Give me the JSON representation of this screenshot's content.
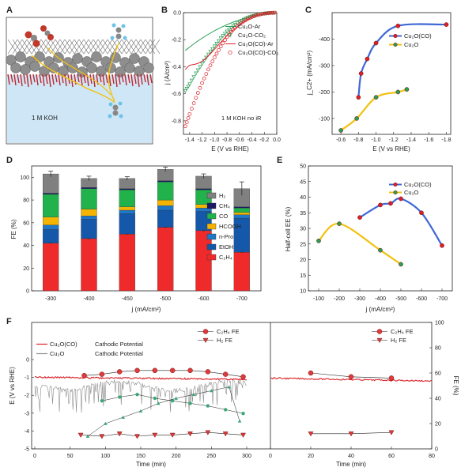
{
  "panels": {
    "A": {
      "label": "A",
      "electrolyte": "1 M KOH"
    },
    "B": {
      "label": "B"
    },
    "C": {
      "label": "C"
    },
    "D": {
      "label": "D"
    },
    "E": {
      "label": "E"
    },
    "F": {
      "label": "F"
    }
  },
  "colors": {
    "cu2oco": "#d92027",
    "cu2o": "#2a9d55",
    "blue": "#3f67d6",
    "yellow": "#f2c10f",
    "H2": "#808080",
    "CH4": "#1a1a66",
    "CO": "#22b24c",
    "HCOOH": "#f4b400",
    "nPro": "#1f77c8",
    "EtOH": "#1557a8",
    "C2H4": "#ee2a2a"
  },
  "chart_data": [
    {
      "id": "B",
      "type": "line",
      "xlabel": "E (V vs RHE)",
      "ylabel": "j (A/cm²)",
      "xlim": [
        -1.5,
        0.0
      ],
      "ylim": [
        -0.9,
        0.0
      ],
      "xticks": [
        "-1.4",
        "-1.2",
        "-1.0",
        "-0.8",
        "-0.6",
        "-0.4",
        "-0.2",
        "0.0"
      ],
      "yticks": [
        "0.0",
        "-0.2",
        "-0.4",
        "-0.6",
        "-0.8"
      ],
      "annotation": "1 M KOH no iR",
      "series": [
        {
          "name": "Cu₂O-Ar",
          "style": "line",
          "color": "#2a9d55",
          "x": [
            -1.47,
            -1.3,
            -1.1,
            -0.9,
            -0.7,
            -0.5,
            -0.35,
            -0.2,
            -0.1,
            -0.05,
            0.0
          ],
          "y": [
            -0.28,
            -0.22,
            -0.16,
            -0.11,
            -0.07,
            -0.04,
            -0.02,
            -0.01,
            -0.005,
            -0.002,
            0.0
          ]
        },
        {
          "name": "Cu₂O-CO₂",
          "style": "triangle",
          "color": "#2a9d55",
          "x": [
            -1.47,
            -1.4,
            -1.3,
            -1.2,
            -1.1,
            -1.0,
            -0.9,
            -0.8,
            -0.7,
            -0.6,
            -0.5,
            -0.4,
            -0.3,
            -0.2,
            -0.1,
            0.0
          ],
          "y": [
            -0.58,
            -0.53,
            -0.45,
            -0.38,
            -0.31,
            -0.25,
            -0.19,
            -0.14,
            -0.1,
            -0.07,
            -0.045,
            -0.028,
            -0.015,
            -0.007,
            -0.003,
            0.0
          ]
        },
        {
          "name": "Cu₂O(CO)-Ar",
          "style": "line",
          "color": "#d92027",
          "x": [
            -1.47,
            -1.4,
            -1.3,
            -1.2,
            -1.1,
            -1.0,
            -0.9,
            -0.8,
            -0.7,
            -0.6,
            -0.5,
            -0.4,
            -0.3,
            -0.2,
            -0.1,
            0.0
          ],
          "y": [
            -0.42,
            -0.39,
            -0.38,
            -0.36,
            -0.32,
            -0.27,
            -0.22,
            -0.17,
            -0.13,
            -0.09,
            -0.06,
            -0.035,
            -0.018,
            -0.008,
            -0.003,
            0.0
          ]
        },
        {
          "name": "Cu₂O(CO)-CO₂",
          "style": "circle",
          "color": "#d92027",
          "x": [
            -1.47,
            -1.4,
            -1.3,
            -1.2,
            -1.1,
            -1.0,
            -0.9,
            -0.8,
            -0.7,
            -0.6,
            -0.5,
            -0.4,
            -0.3,
            -0.2,
            -0.1,
            0.0
          ],
          "y": [
            -0.84,
            -0.75,
            -0.63,
            -0.52,
            -0.42,
            -0.33,
            -0.25,
            -0.18,
            -0.125,
            -0.085,
            -0.055,
            -0.032,
            -0.016,
            -0.007,
            -0.002,
            0.0
          ]
        }
      ]
    },
    {
      "id": "C",
      "type": "line",
      "xlabel": "E (V vs RHE)",
      "ylabel": "j_C2+ (mA/cm²)",
      "xlim": [
        -0.5,
        -1.85
      ],
      "ylim": [
        -40,
        -500
      ],
      "xticks": [
        "-0.6",
        "-0.8",
        "-1.0",
        "-1.2",
        "-1.4",
        "-1.6",
        "-1.8"
      ],
      "yticks": [
        "-100",
        "-200",
        "-300",
        "-400"
      ],
      "series": [
        {
          "name": "Cu₂O(CO)",
          "color": "#d92027",
          "line": "#3f67d6",
          "x": [
            -0.8,
            -0.83,
            -0.9,
            -1.0,
            -1.25,
            -1.8
          ],
          "y": [
            -180,
            -270,
            -325,
            -385,
            -450,
            -455
          ]
        },
        {
          "name": "Cu₂O",
          "color": "#2a9d55",
          "line": "#f2c10f",
          "x": [
            -0.6,
            -0.78,
            -1.0,
            -1.25,
            -1.35
          ],
          "y": [
            -55,
            -100,
            -180,
            -200,
            -210
          ]
        }
      ]
    },
    {
      "id": "D",
      "type": "bar",
      "stacked": true,
      "xlabel": "j (mA/cm²)",
      "ylabel": "FE (%)",
      "ylim": [
        0,
        110
      ],
      "yticks": [
        "0",
        "20",
        "40",
        "60",
        "80",
        "100"
      ],
      "categories": [
        "-300",
        "-400",
        "-450",
        "-500",
        "-600",
        "-700"
      ],
      "legend": [
        "H₂",
        "CH₄",
        "CO",
        "HCOOH",
        "n-Pro",
        "EtOH",
        "C₂H₄"
      ],
      "series": [
        {
          "name": "C₂H₄",
          "color": "#ee2a2a",
          "values": [
            42,
            46,
            50,
            56,
            53,
            34
          ]
        },
        {
          "name": "EtOH",
          "color": "#1557a8",
          "values": [
            12,
            17,
            18,
            15,
            17,
            30
          ]
        },
        {
          "name": "n-Pro",
          "color": "#1f77c8",
          "values": [
            4,
            3,
            3,
            4,
            3,
            3
          ]
        },
        {
          "name": "HCOOH",
          "color": "#f4b400",
          "values": [
            7,
            6,
            3,
            5,
            3,
            2
          ]
        },
        {
          "name": "CO",
          "color": "#22b24c",
          "values": [
            20,
            18,
            15,
            16,
            13,
            4
          ]
        },
        {
          "name": "CH₄",
          "color": "#1a1a66",
          "values": [
            1,
            1,
            1,
            1,
            1,
            1
          ]
        },
        {
          "name": "H₂",
          "color": "#808080",
          "values": [
            17,
            8,
            9,
            10,
            11,
            16
          ]
        }
      ],
      "errors": [
        2.5,
        2,
        1.5,
        2,
        2,
        6
      ]
    },
    {
      "id": "E",
      "type": "line",
      "xlabel": "j (mA/cm²)",
      "ylabel": "Half-cell EE (%)",
      "xlim": [
        -50,
        -750
      ],
      "ylim": [
        10,
        50
      ],
      "xticks": [
        "-100",
        "-200",
        "-300",
        "-400",
        "-500",
        "-600",
        "-700"
      ],
      "yticks": [
        "10",
        "15",
        "20",
        "25",
        "30",
        "35",
        "40",
        "45",
        "50"
      ],
      "series": [
        {
          "name": "Cu₂O(CO)",
          "color": "#d92027",
          "line": "#3f67d6",
          "x": [
            -300,
            -400,
            -450,
            -500,
            -600,
            -700
          ],
          "y": [
            33.5,
            37.5,
            38,
            39.5,
            35,
            24.5
          ]
        },
        {
          "name": "Cu₂O",
          "color": "#2a9d55",
          "line": "#f2c10f",
          "x": [
            -100,
            -200,
            -400,
            -500
          ],
          "y": [
            26,
            31.5,
            23,
            18.5
          ]
        }
      ]
    },
    {
      "id": "F",
      "type": "line",
      "ylabel_left": "E (V vs RHE)",
      "ylabel_right": "FE (%)",
      "xlabel": "Time (min)",
      "yticks_left": [
        "0",
        "-1",
        "-2",
        "-3",
        "-4",
        "-5"
      ],
      "yticks_right": [
        "0",
        "20",
        "40",
        "60",
        "80",
        "100"
      ],
      "xticks_left": [
        "0",
        "50",
        "100",
        "150",
        "200",
        "250",
        "300"
      ],
      "xticks_right": [
        "0",
        "20",
        "40",
        "60",
        "80"
      ],
      "potential_legend": [
        {
          "name": "Cu₂O(CO)",
          "desc": "Cathodic Potential",
          "color": "#d92027"
        },
        {
          "name": "Cu₂O",
          "desc": "Cathodic Potential",
          "color": "#909090"
        }
      ],
      "fe_legend": [
        {
          "name": "C₂H₄ FE",
          "marker": "circle",
          "color": "#d92027"
        },
        {
          "name": "H₂  FE",
          "marker": "triangle-down",
          "color": "#d92027"
        }
      ],
      "c2h4_left": {
        "x": [
          70,
          95,
          120,
          145,
          170,
          195,
          220,
          245,
          270,
          295
        ],
        "y": [
          58,
          59,
          61,
          62,
          62,
          62,
          62,
          61,
          59,
          57
        ]
      },
      "h2_left": {
        "x": [
          65,
          95,
          120,
          145,
          170,
          195,
          220,
          245,
          270,
          295
        ],
        "y": [
          11,
          10,
          12,
          10,
          11,
          11,
          12,
          13,
          12,
          11
        ]
      },
      "cu2o_c2h4": {
        "x": [
          95,
          120,
          145,
          170,
          195,
          220,
          245,
          270,
          295
        ],
        "y": [
          38,
          41,
          43,
          40,
          38,
          36,
          34,
          31,
          28
        ]
      },
      "cu2o_h2": {
        "x": [
          75,
          100,
          125,
          150,
          175,
          200,
          225,
          250,
          275,
          290
        ],
        "y": [
          10,
          20,
          25,
          30,
          36,
          40,
          43,
          46,
          49,
          22
        ]
      },
      "c2h4_right": {
        "x": [
          20,
          40,
          60
        ],
        "y": [
          60,
          57,
          56
        ]
      },
      "h2_right": {
        "x": [
          20,
          40,
          60
        ],
        "y": [
          12,
          12,
          13
        ]
      }
    }
  ]
}
